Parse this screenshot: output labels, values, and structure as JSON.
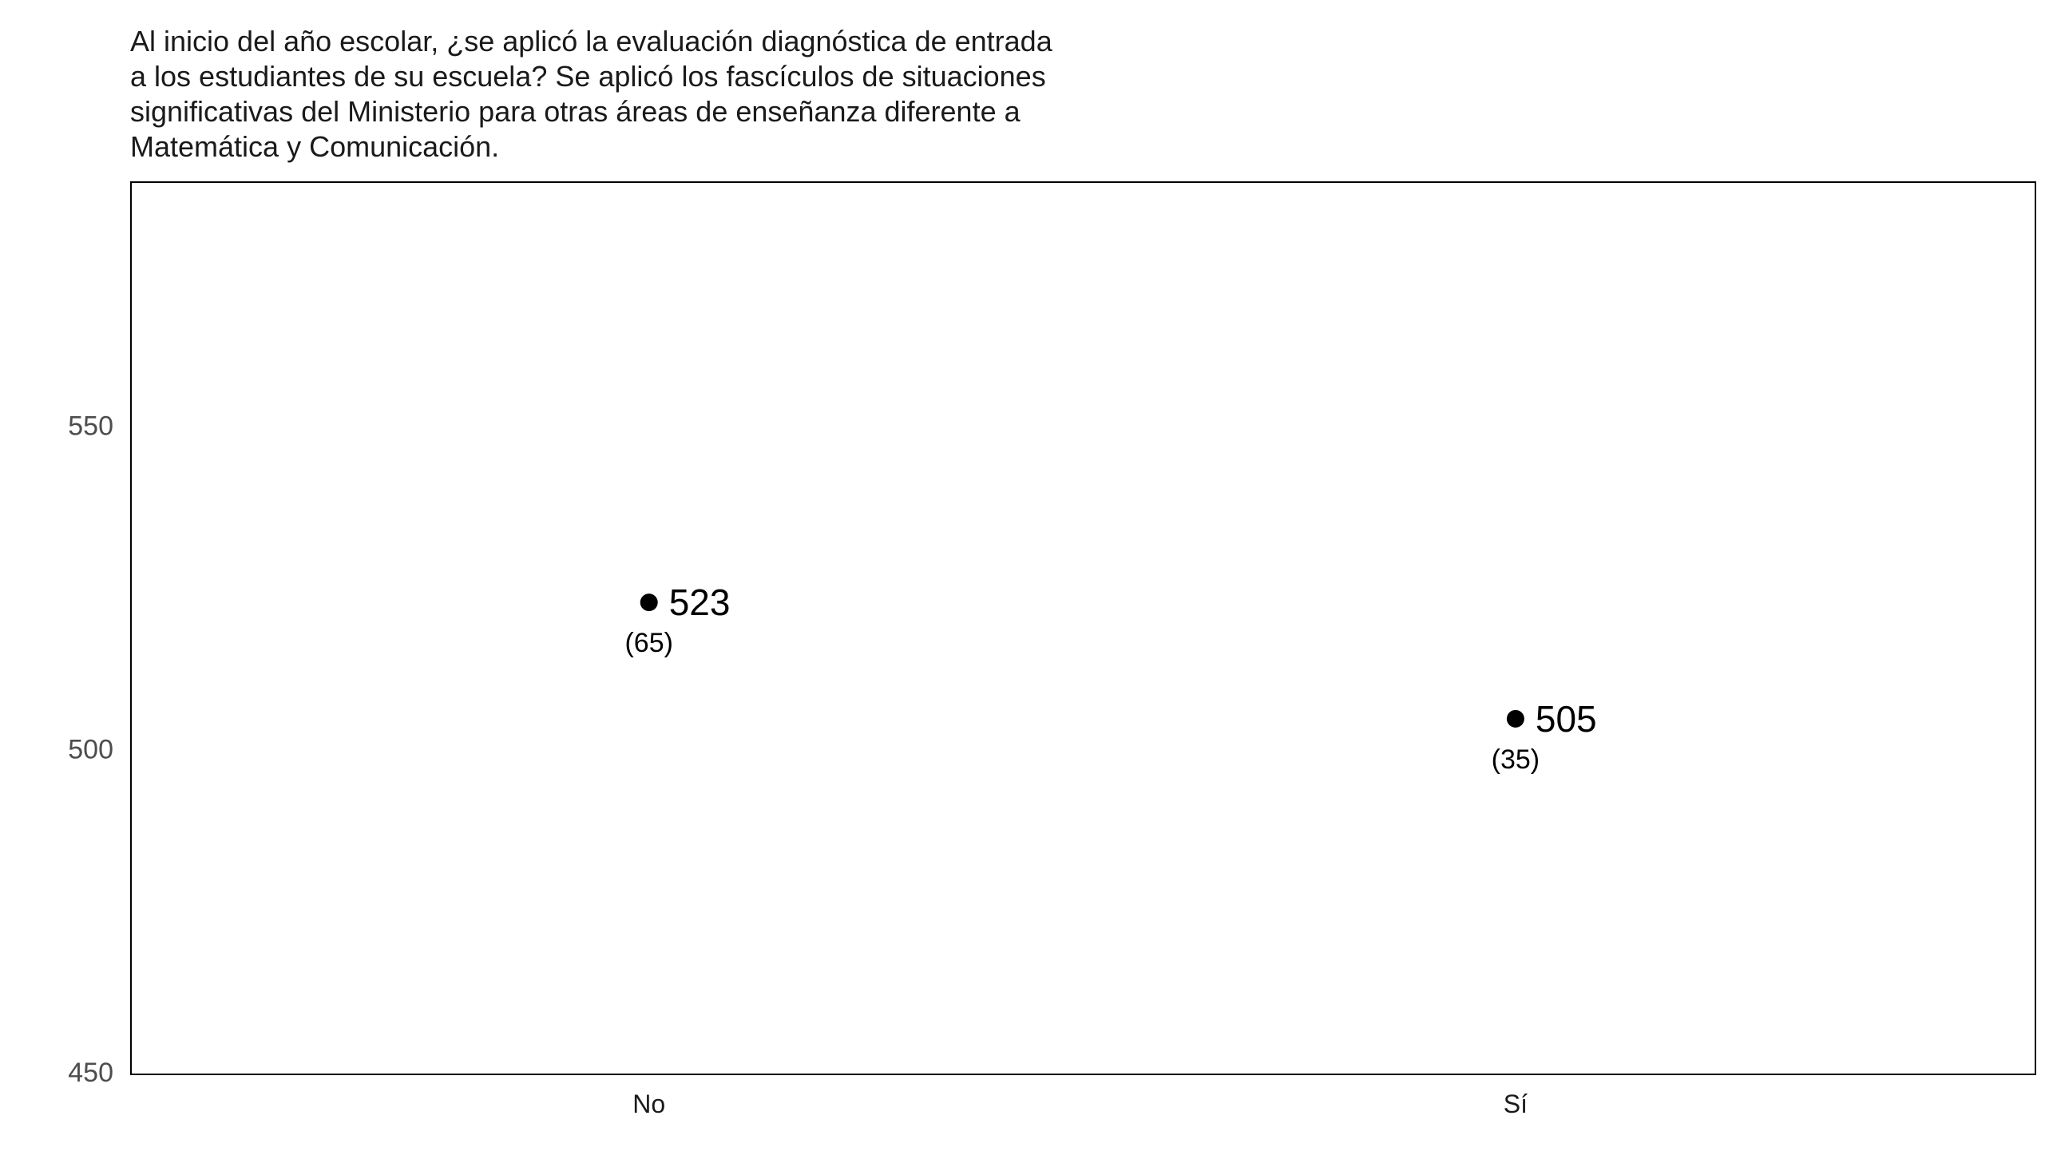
{
  "chart_data": {
    "type": "scatter",
    "title": "Al inicio del año escolar, ¿se aplicó la evaluación diagnóstica de entrada\na los estudiantes de su escuela? Se aplicó los fascículos de situaciones\nsignificativas del Ministerio para otras áreas de enseñanza diferente a\nMatemática y Comunicación.",
    "xlabel": "",
    "ylabel": "",
    "categories": [
      "No",
      "Sí"
    ],
    "values": [
      523,
      505
    ],
    "value_labels": [
      "523",
      "505"
    ],
    "n_labels": [
      "(65)",
      "(35)"
    ],
    "ylim": [
      450,
      588
    ],
    "yticks": [
      450,
      500,
      550
    ],
    "ytick_labels": [
      "450",
      "500",
      "550"
    ],
    "grid": false,
    "point_color": "#000000",
    "frame_color": "#000000"
  }
}
